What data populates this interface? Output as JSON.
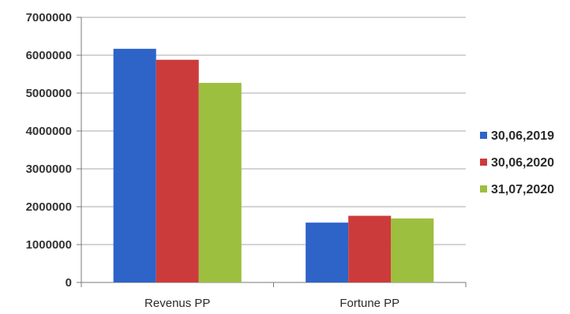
{
  "chart_data": {
    "type": "bar",
    "title": "",
    "xlabel": "",
    "ylabel": "",
    "categories": [
      "Revenus PP",
      "Fortune PP"
    ],
    "series": [
      {
        "name": "30,06,2019",
        "color": "#2e63c8",
        "values": [
          6170000,
          1580000
        ]
      },
      {
        "name": "30,06,2020",
        "color": "#cc3b3b",
        "values": [
          5880000,
          1760000
        ]
      },
      {
        "name": "31,07,2020",
        "color": "#9cbf3f",
        "values": [
          5270000,
          1690000
        ]
      }
    ],
    "ylim": [
      0,
      7000000
    ],
    "yticks": [
      "0",
      "1000000",
      "2000000",
      "3000000",
      "4000000",
      "5000000",
      "6000000",
      "7000000"
    ],
    "grid": true,
    "legend_position": "right"
  }
}
